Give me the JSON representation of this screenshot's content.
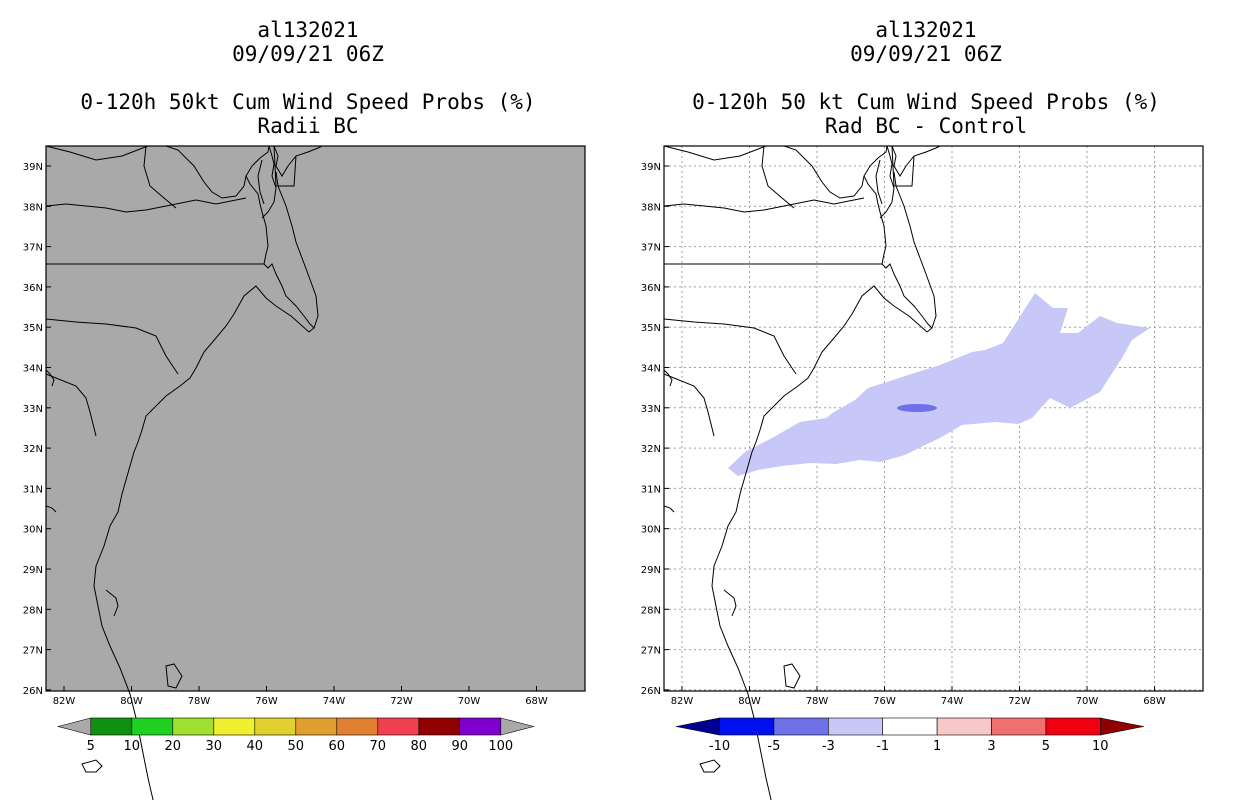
{
  "left": {
    "header": {
      "storm": "al132021",
      "datetime": "09/09/21 06Z",
      "title": "0-120h 50kt Cum Wind Speed Probs (%)",
      "subtitle": "Radii BC"
    },
    "background_color": "#a9a9a9",
    "colorbar": {
      "labels": [
        "5",
        "10",
        "20",
        "30",
        "40",
        "50",
        "60",
        "70",
        "80",
        "90",
        "100"
      ],
      "colors": [
        "#a9a9a9",
        "#109010",
        "#20d020",
        "#a0e030",
        "#f0f030",
        "#e0d030",
        "#e0a030",
        "#e08030",
        "#f04050",
        "#900000",
        "#8000d0",
        "#a9a9a9"
      ]
    }
  },
  "right": {
    "header": {
      "storm": "al132021",
      "datetime": "09/09/21 06Z",
      "title": "0-120h 50 kt Cum Wind Speed Probs (%)",
      "subtitle": "Rad BC - Control"
    },
    "background_color": "#ffffff",
    "field_colors": {
      "light": "#c8c8f8",
      "mid": "#7070e8"
    },
    "colorbar": {
      "labels": [
        "-10",
        "-5",
        "-3",
        "-1",
        "1",
        "3",
        "5",
        "10"
      ],
      "colors": [
        "#000090",
        "#0010f0",
        "#7070e8",
        "#c8c8f8",
        "#ffffff",
        "#f8c8c8",
        "#f07070",
        "#f00010",
        "#900000"
      ]
    }
  },
  "axes": {
    "lat_labels": [
      "39N",
      "38N",
      "37N",
      "36N",
      "35N",
      "34N",
      "33N",
      "32N",
      "31N",
      "30N",
      "29N",
      "28N",
      "27N",
      "26N"
    ],
    "lon_labels": [
      "82W",
      "80W",
      "78W",
      "76W",
      "74W",
      "72W",
      "70W",
      "68W"
    ]
  }
}
